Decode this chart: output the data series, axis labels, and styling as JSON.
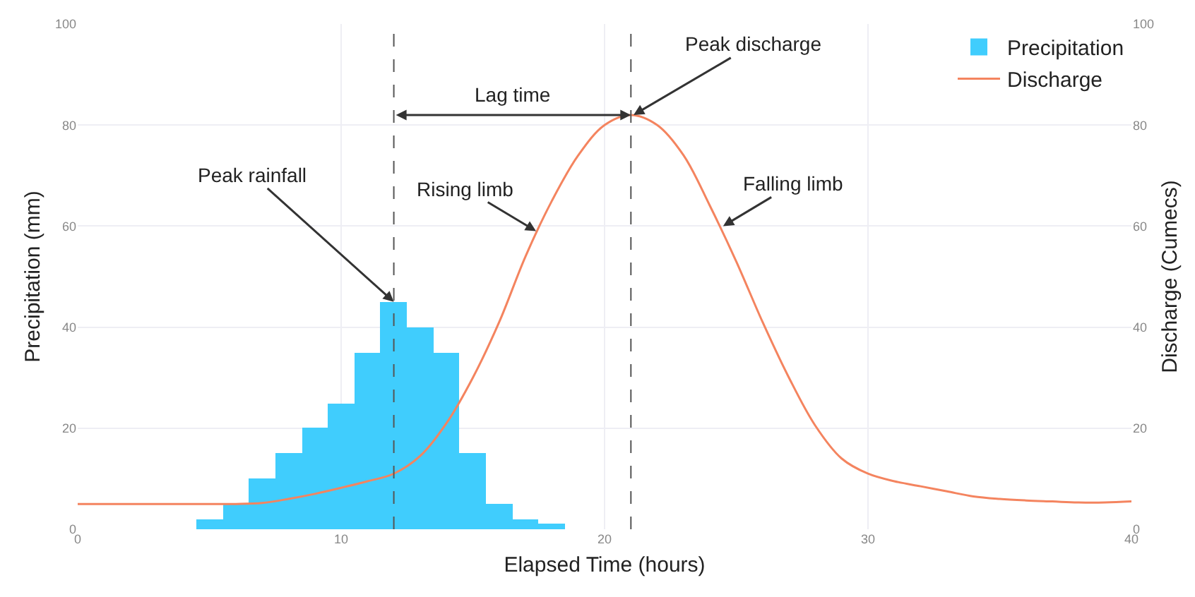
{
  "chart_data": {
    "type": "histogram",
    "xlabel": "Elapsed Time (hours)",
    "ylabel": "Precipitation (mm)",
    "y2label": "Discharge (Cumecs)",
    "series": [
      {
        "name": "Precipitation",
        "color": "#40cdfd",
        "bins": [
          4.5,
          5.5,
          6.5,
          7.5,
          8.5,
          9.5,
          10.5,
          11.5,
          12.5,
          13.5,
          14.5,
          15.5,
          16.5,
          17.5,
          18.5
        ],
        "values": [
          2,
          5,
          10,
          15,
          20,
          25,
          35,
          45,
          40,
          35,
          15,
          5,
          2,
          1
        ]
      },
      {
        "name": "Discharge",
        "type": "line",
        "axis": "y2",
        "color": "#f4845f",
        "x": [
          0,
          2,
          4,
          6,
          7,
          8,
          9,
          10,
          11,
          12,
          13,
          14,
          15,
          16,
          17,
          18,
          19,
          20,
          21,
          22,
          23,
          24,
          25,
          26,
          27,
          28,
          29,
          30,
          31,
          32,
          33,
          34,
          35,
          36,
          37,
          38,
          39,
          40
        ],
        "values": [
          5,
          5,
          5,
          5,
          5.2,
          6,
          7,
          8.2,
          9.5,
          11,
          14.5,
          21,
          30,
          41,
          54,
          65,
          74,
          80,
          82,
          80,
          74,
          64,
          53,
          41,
          30,
          20.5,
          14,
          11,
          9.5,
          8.5,
          7.5,
          6.5,
          6,
          5.7,
          5.5,
          5.3,
          5.3,
          5.5
        ]
      }
    ],
    "xlim": [
      0,
      40
    ],
    "xticks": [
      0,
      10,
      20,
      30,
      40
    ],
    "ylim": [
      0,
      100
    ],
    "yticks": [
      0,
      20,
      40,
      60,
      80,
      100
    ],
    "y2lim": [
      0,
      100
    ],
    "y2ticks": [
      0,
      20,
      40,
      60,
      80,
      100
    ],
    "ref_lines": [
      {
        "axis": "x",
        "value": 12,
        "color": "#555555",
        "line_style": "dashed"
      },
      {
        "axis": "x",
        "value": 21,
        "color": "#555555",
        "line_style": "dashed"
      }
    ],
    "annotations": [
      {
        "text": "Peak rainfall",
        "x": 12,
        "y": 45
      },
      {
        "text": "Rising limb",
        "x": 17.4,
        "y": 59
      },
      "Lag time",
      {
        "text": "Peak discharge",
        "x": 21.1,
        "y": 82
      },
      {
        "text": "Falling limb",
        "x": 24.5,
        "y": 60
      }
    ],
    "grid": true,
    "legend": "top right"
  }
}
